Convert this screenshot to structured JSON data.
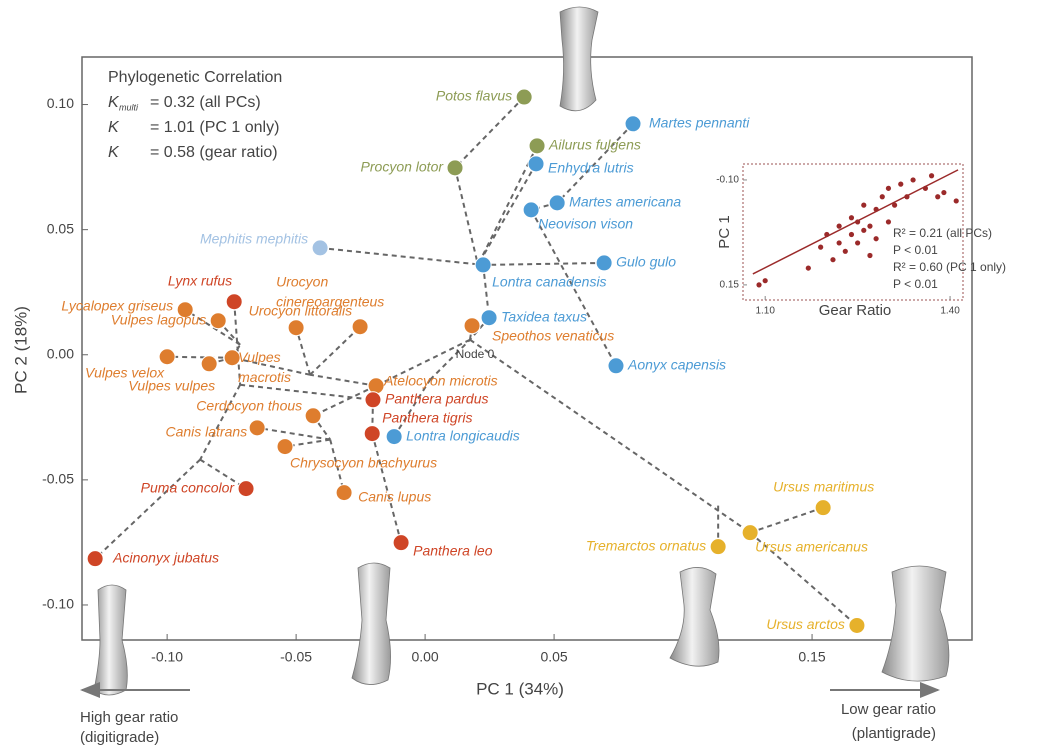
{
  "chart_data": [
    {
      "type": "scatter",
      "x_label": "PC 1 (34%)",
      "y_label": "PC 2 (18%)",
      "xlim": [
        -0.133,
        0.212
      ],
      "ylim": [
        -0.114,
        0.119
      ],
      "xticks": [
        {
          "value": -0.1,
          "label": "-0.10"
        },
        -0.05,
        {
          "value": 0,
          "label": "0.00"
        },
        0.05,
        0.15
      ],
      "yticks": [
        {
          "value": 0.1,
          "label": "0.10"
        },
        0.05,
        {
          "value": 0,
          "label": "0.00"
        },
        -0.05,
        {
          "value": -0.1,
          "label": "-0.10"
        }
      ],
      "stats_title": "Phylogenetic Correlation",
      "stats": [
        {
          "symbol": "K",
          "subscript": "multi",
          "text": "= 0.32 (all PCs)"
        },
        {
          "symbol": "K",
          "text": "= 1.01 (PC 1 only)"
        },
        {
          "symbol": "K",
          "text": "= 0.58 (gear ratio)"
        }
      ],
      "node_label": "Node 0",
      "left_note": [
        "High gear ratio",
        "(digitigrade)"
      ],
      "right_note": [
        "Low gear ratio",
        "(plantigrade)"
      ],
      "points": [
        {
          "name": "Potos flavus",
          "x": 0.0384,
          "y": 0.103,
          "color": "#8d9c55"
        },
        {
          "name": "Procyon lotor",
          "x": 0.0116,
          "y": 0.0747,
          "color": "#8d9c55"
        },
        {
          "name": "Ailurus fulgens",
          "x": 0.0434,
          "y": 0.0835,
          "color": "#8d9c55"
        },
        {
          "name": "Martes pennanti",
          "x": 0.0806,
          "y": 0.0923,
          "color": "#4c9bd5"
        },
        {
          "name": "Enhydra lutris",
          "x": 0.043,
          "y": 0.0763,
          "color": "#4c9bd5"
        },
        {
          "name": "Martes americana",
          "x": 0.0512,
          "y": 0.0607,
          "color": "#4c9bd5"
        },
        {
          "name": "Neovison vison",
          "x": 0.0411,
          "y": 0.0579,
          "color": "#4c9bd5"
        },
        {
          "name": "Mephitis mephitis",
          "x": -0.0407,
          "y": 0.0427,
          "color": "#a3c2e3"
        },
        {
          "name": "Gulo gulo",
          "x": 0.0694,
          "y": 0.0367,
          "color": "#4c9bd5"
        },
        {
          "name": "Lontra canadensis",
          "x": 0.0225,
          "y": 0.0359,
          "color": "#4c9bd5"
        },
        {
          "name": "Taxidea taxus",
          "x": 0.0248,
          "y": 0.0148,
          "color": "#4c9bd5"
        },
        {
          "name": "Speothos venaticus",
          "x": 0.0182,
          "y": 0.0116,
          "color": "#de7d2e"
        },
        {
          "name": "Aonyx capensis",
          "x": 0.074,
          "y": -0.0044,
          "color": "#4c9bd5"
        },
        {
          "name": "Lontra longicaudis",
          "x": -0.012,
          "y": -0.0327,
          "color": "#4c9bd5"
        },
        {
          "name": "Lynx rufus",
          "x": -0.074,
          "y": 0.0212,
          "color": "#cf4526"
        },
        {
          "name": "Lycalopex griseus",
          "x": -0.093,
          "y": 0.018,
          "color": "#de7d2e"
        },
        {
          "name": "Vulpes lagopus",
          "x": -0.0802,
          "y": 0.0136,
          "color": "#de7d2e"
        },
        {
          "name": "Urocyon cinereoargenteus",
          "x": -0.05,
          "y": 0.0108,
          "color": "#de7d2e"
        },
        {
          "name": "Urocyon littoralis",
          "x": -0.0252,
          "y": 0.0112,
          "color": "#de7d2e"
        },
        {
          "name": "Vulpes velox",
          "x": -0.1,
          "y": -0.0008,
          "color": "#de7d2e"
        },
        {
          "name": "Vulpes vulpes",
          "x": -0.0837,
          "y": -0.0036,
          "color": "#de7d2e"
        },
        {
          "name": "Vulpes macrotis",
          "x": -0.0748,
          "y": -0.0012,
          "color": "#de7d2e"
        },
        {
          "name": "Atelocyon microtis",
          "x": -0.019,
          "y": -0.0124,
          "color": "#de7d2e"
        },
        {
          "name": "Panthera pardus",
          "x": -0.0202,
          "y": -0.018,
          "color": "#cf4526"
        },
        {
          "name": "Cerdocyon thous",
          "x": -0.0434,
          "y": -0.0244,
          "color": "#de7d2e"
        },
        {
          "name": "Canis latrans",
          "x": -0.0651,
          "y": -0.0292,
          "color": "#de7d2e"
        },
        {
          "name": "Panthera tigris",
          "x": -0.0205,
          "y": -0.0315,
          "color": "#cf4526"
        },
        {
          "name": "Chrysocyon brachyurus",
          "x": -0.0543,
          "y": -0.0367,
          "color": "#de7d2e"
        },
        {
          "name": "Puma concolor",
          "x": -0.0694,
          "y": -0.0535,
          "color": "#cf4526"
        },
        {
          "name": "Canis lupus",
          "x": -0.0314,
          "y": -0.0551,
          "color": "#de7d2e"
        },
        {
          "name": "Acinonyx jubatus",
          "x": -0.1279,
          "y": -0.0815,
          "color": "#cf4526"
        },
        {
          "name": "Panthera leo",
          "x": -0.0093,
          "y": -0.0751,
          "color": "#cf4526"
        },
        {
          "name": "Tremarctos ornatus",
          "x": 0.1136,
          "y": -0.0767,
          "color": "#e6b12b"
        },
        {
          "name": "Ursus americanus",
          "x": 0.126,
          "y": -0.0711,
          "color": "#e6b12b"
        },
        {
          "name": "Ursus maritimus",
          "x": 0.1543,
          "y": -0.0611,
          "color": "#e6b12b"
        },
        {
          "name": "Ursus arctos",
          "x": 0.1674,
          "y": -0.1082,
          "color": "#e6b12b"
        }
      ],
      "tree_edges": [
        [
          0.0384,
          0.103,
          0.0116,
          0.0747
        ],
        [
          0.0116,
          0.0747,
          0.0205,
          0.0359
        ],
        [
          0.0434,
          0.0835,
          0.0205,
          0.0359
        ],
        [
          0.0806,
          0.0923,
          0.0512,
          0.0607
        ],
        [
          0.0512,
          0.0607,
          0.0411,
          0.0579
        ],
        [
          0.043,
          0.0763,
          0.0205,
          0.0359
        ],
        [
          0.0411,
          0.0579,
          0.074,
          -0.0044
        ],
        [
          -0.0407,
          0.0427,
          0.0225,
          0.0359
        ],
        [
          0.0694,
          0.0367,
          0.0225,
          0.0359
        ],
        [
          0.0225,
          0.0359,
          0.0248,
          0.0148
        ],
        [
          0.0248,
          0.0148,
          0.0174,
          0.006
        ],
        [
          0.0182,
          0.0116,
          0.0174,
          0.006
        ],
        [
          0.0174,
          0.006,
          -0.019,
          -0.0124
        ],
        [
          0.0174,
          0.006,
          0.126,
          -0.0711
        ],
        [
          0.126,
          -0.0711,
          0.1543,
          -0.0611
        ],
        [
          0.126,
          -0.0711,
          0.1674,
          -0.1082
        ],
        [
          0.1136,
          -0.0767,
          0.1136,
          -0.0599
        ],
        [
          -0.012,
          -0.0327,
          0.0019,
          -0.01
        ],
        [
          0.0019,
          -0.01,
          0.0174,
          0.006
        ],
        [
          -0.019,
          -0.0124,
          -0.0446,
          -0.008
        ],
        [
          -0.0446,
          -0.008,
          -0.05,
          0.0108
        ],
        [
          -0.0446,
          -0.008,
          -0.0252,
          0.0112
        ],
        [
          -0.0446,
          -0.008,
          -0.0748,
          -0.0012
        ],
        [
          -0.0748,
          -0.0012,
          -0.1,
          -0.0008
        ],
        [
          -0.0748,
          -0.0012,
          -0.0837,
          -0.0036
        ],
        [
          -0.0748,
          -0.0012,
          -0.0717,
          0.004
        ],
        [
          -0.0717,
          0.004,
          -0.093,
          0.018
        ],
        [
          -0.0717,
          0.004,
          -0.0802,
          0.0136
        ],
        [
          -0.074,
          0.0212,
          -0.0717,
          -0.012
        ],
        [
          -0.0717,
          -0.012,
          -0.0202,
          -0.018
        ],
        [
          -0.0717,
          -0.012,
          -0.0872,
          -0.0419
        ],
        [
          -0.0872,
          -0.0419,
          -0.1279,
          -0.0815
        ],
        [
          -0.0872,
          -0.0419,
          -0.0694,
          -0.0535
        ],
        [
          -0.0202,
          -0.018,
          -0.0205,
          -0.0315
        ],
        [
          -0.0205,
          -0.0315,
          -0.0093,
          -0.0751
        ],
        [
          -0.019,
          -0.0124,
          -0.0434,
          -0.0244
        ],
        [
          -0.0434,
          -0.0244,
          -0.0368,
          -0.0339
        ],
        [
          -0.0368,
          -0.0339,
          -0.0314,
          -0.0551
        ],
        [
          -0.0368,
          -0.0339,
          -0.0651,
          -0.0292
        ],
        [
          -0.0368,
          -0.0339,
          -0.0543,
          -0.0367
        ]
      ]
    },
    {
      "type": "scatter",
      "x_label": "Gear Ratio",
      "y_label": "PC 1",
      "xlim": [
        1.064,
        1.421
      ],
      "ylim": [
        0.186,
        -0.138
      ],
      "xticks": [
        {
          "value": 1.1,
          "label": "1.10"
        },
        {
          "value": 1.4,
          "label": "1.40"
        }
      ],
      "yticks": [
        {
          "value": -0.1,
          "label": "-0.10"
        },
        0.15
      ],
      "color": "#9b2a2a",
      "x": [
        1.09,
        1.1,
        1.17,
        1.19,
        1.2,
        1.21,
        1.22,
        1.22,
        1.23,
        1.24,
        1.24,
        1.25,
        1.25,
        1.26,
        1.26,
        1.27,
        1.27,
        1.28,
        1.28,
        1.29,
        1.3,
        1.3,
        1.31,
        1.32,
        1.33,
        1.34,
        1.36,
        1.37,
        1.38,
        1.39,
        1.41
      ],
      "values": [
        0.15,
        0.14,
        0.11,
        0.06,
        0.03,
        0.09,
        0.01,
        0.05,
        0.07,
        -0.01,
        0.03,
        0,
        0.05,
        0.02,
        -0.04,
        0.01,
        0.08,
        -0.03,
        0.04,
        -0.06,
        0,
        -0.08,
        -0.04,
        -0.09,
        -0.06,
        -0.1,
        -0.08,
        -0.11,
        -0.06,
        -0.07,
        -0.05
      ],
      "trend_line": [
        1.08,
        0.124,
        1.413,
        -0.124
      ],
      "annotations": [
        "R² = 0.21 (all PCs)",
        "P < 0.01",
        "R² = 0.60 (PC 1 only)",
        "P < 0.01"
      ]
    }
  ]
}
